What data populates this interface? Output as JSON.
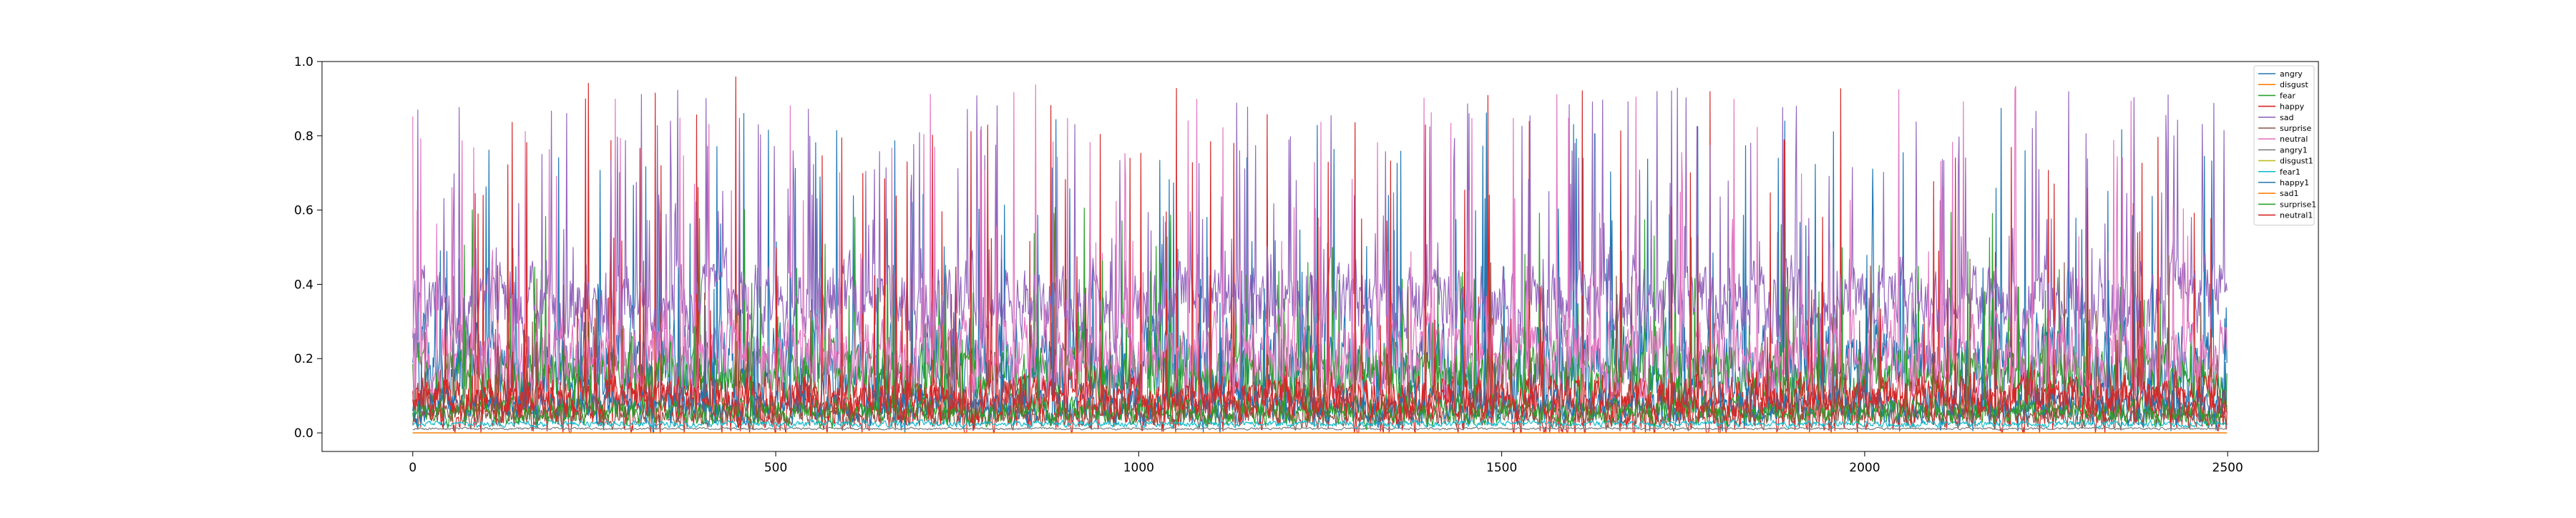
{
  "chart_data": {
    "type": "line",
    "title": "",
    "xlabel": "",
    "ylabel": "",
    "xlim": [
      -125,
      2625
    ],
    "ylim": [
      -0.05,
      1.0
    ],
    "x_ticks": [
      0,
      500,
      1000,
      1500,
      2000,
      2500
    ],
    "x_tick_labels": [
      "0",
      "500",
      "1000",
      "1500",
      "2000",
      "2500"
    ],
    "y_ticks": [
      0.0,
      0.2,
      0.4,
      0.6,
      0.8,
      1.0
    ],
    "y_tick_labels": [
      "0.0",
      "0.2",
      "0.4",
      "0.6",
      "0.8",
      "1.0"
    ],
    "grid": false,
    "legend_position": "top-right",
    "num_points": 2500,
    "series": [
      {
        "name": "angry",
        "color": "#1f77b4",
        "level": 0.1,
        "spread": 0.45,
        "peak": 0.89,
        "spike_rate": 0.08
      },
      {
        "name": "disgust",
        "color": "#ff7f0e",
        "level": 0.0,
        "spread": 0.0,
        "peak": 0.0,
        "spike_rate": 0.0
      },
      {
        "name": "fear",
        "color": "#2ca02c",
        "level": 0.12,
        "spread": 0.25,
        "peak": 0.61,
        "spike_rate": 0.05
      },
      {
        "name": "happy",
        "color": "#d62728",
        "level": 0.04,
        "spread": 0.25,
        "peak": 0.96,
        "spike_rate": 0.03
      },
      {
        "name": "sad",
        "color": "#9467bd",
        "level": 0.3,
        "spread": 0.35,
        "peak": 0.93,
        "spike_rate": 0.1
      },
      {
        "name": "surprise",
        "color": "#8c564b",
        "level": 0.03,
        "spread": 0.1,
        "peak": 0.48,
        "spike_rate": 0.03
      },
      {
        "name": "neutral",
        "color": "#e377c2",
        "level": 0.15,
        "spread": 0.35,
        "peak": 0.95,
        "spike_rate": 0.06
      },
      {
        "name": "angry1",
        "color": "#7f7f7f",
        "level": 0.01,
        "spread": 0.01,
        "peak": 0.05,
        "spike_rate": 0.0
      },
      {
        "name": "disgust1",
        "color": "#bcbd22",
        "level": 0.0,
        "spread": 0.0,
        "peak": 0.0,
        "spike_rate": 0.0
      },
      {
        "name": "fear1",
        "color": "#17becf",
        "level": 0.02,
        "spread": 0.03,
        "peak": 0.1,
        "spike_rate": 0.0
      },
      {
        "name": "happy1",
        "color": "#1f77b4",
        "level": 0.05,
        "spread": 0.15,
        "peak": 0.5,
        "spike_rate": 0.02
      },
      {
        "name": "sad1",
        "color": "#ff7f0e",
        "level": 0.0,
        "spread": 0.0,
        "peak": 0.0,
        "spike_rate": 0.0
      },
      {
        "name": "surprise1",
        "color": "#2ca02c",
        "level": 0.04,
        "spread": 0.12,
        "peak": 0.5,
        "spike_rate": 0.02
      },
      {
        "name": "neutral1",
        "color": "#d62728",
        "level": 0.06,
        "spread": 0.2,
        "peak": 0.9,
        "spike_rate": 0.03
      }
    ]
  }
}
